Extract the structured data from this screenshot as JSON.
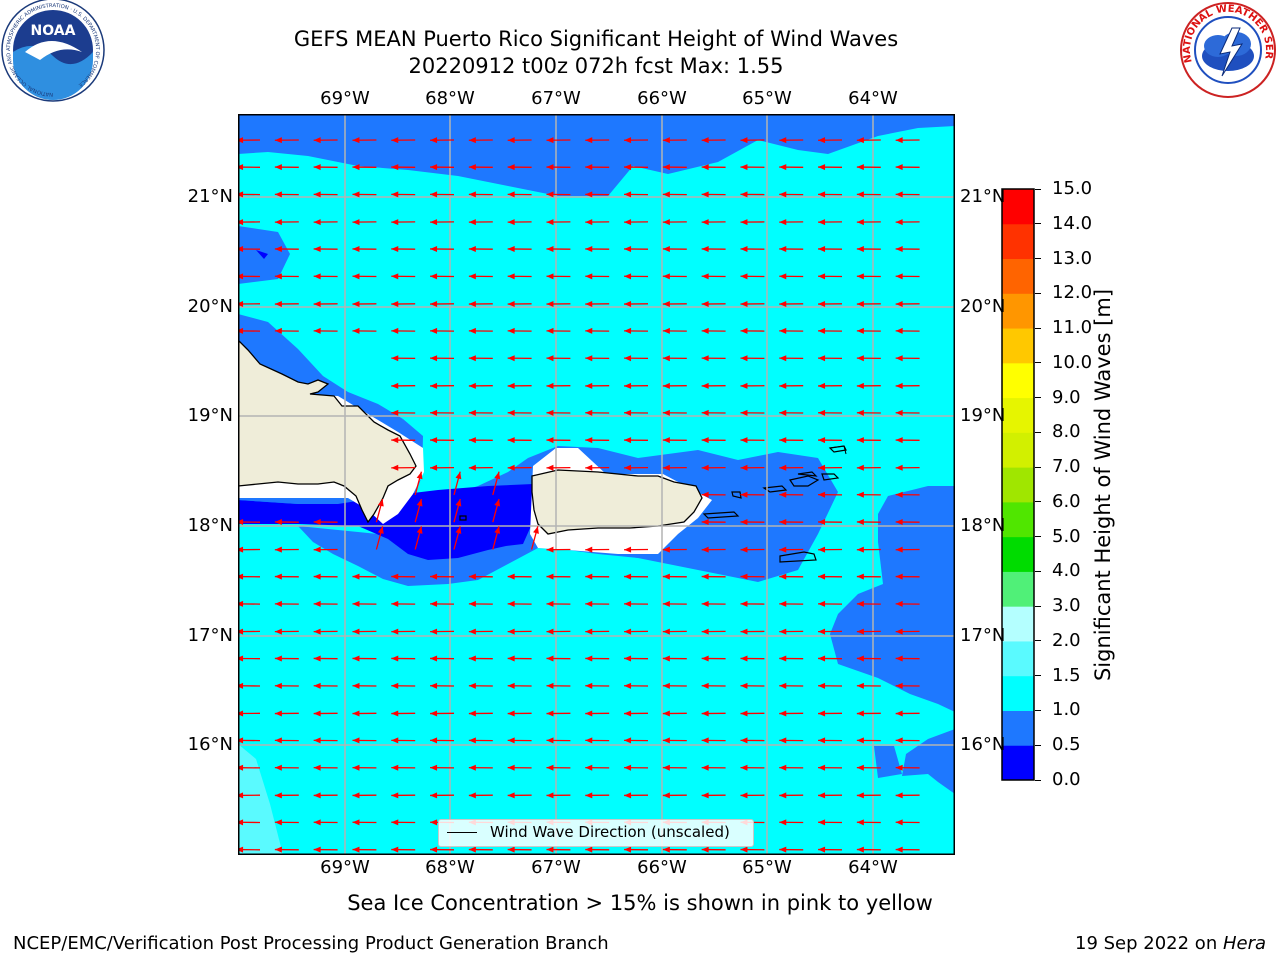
{
  "header": {
    "title_line1": "GEFS MEAN Puerto Rico Significant Height of Wind Waves",
    "title_line2": "20220912 t00z 072h fcst   Max: 1.55"
  },
  "map": {
    "lon_labels": [
      "69°W",
      "68°W",
      "67°W",
      "66°W",
      "65°W",
      "64°W"
    ],
    "lat_labels": [
      "21°N",
      "20°N",
      "19°N",
      "18°N",
      "17°N",
      "16°N"
    ],
    "legend_label": "Wind Wave Direction (unscaled)",
    "arrow_color": "#ff0000"
  },
  "colorbar": {
    "label": "Significant Height of Wind Waves [m]",
    "ticks": [
      "0.0",
      "0.5",
      "1.0",
      "1.5",
      "2.0",
      "3.0",
      "4.0",
      "5.0",
      "6.0",
      "7.0",
      "8.0",
      "9.0",
      "10.0",
      "11.0",
      "12.0",
      "13.0",
      "14.0",
      "15.0"
    ],
    "colors": [
      "#0000ff",
      "#1e78ff",
      "#00ffff",
      "#5afaff",
      "#b4ffff",
      "#50f078",
      "#00dc00",
      "#50e600",
      "#a0e600",
      "#d2f000",
      "#e6f500",
      "#ffff00",
      "#ffc800",
      "#ff9600",
      "#ff6400",
      "#ff3200",
      "#ff0000"
    ]
  },
  "footer": {
    "subtitle": "Sea Ice Concentration > 15% is shown in pink to yellow",
    "credit": "NCEP/EMC/Verification Post Processing Product Generation Branch",
    "date_prefix": "19 Sep 2022 on ",
    "date_host": "Hera"
  },
  "logos": {
    "noaa_text": "NOAA",
    "noaa_ring": "NATIONAL OCEANIC AND ATMOSPHERIC ADMINISTRATION · U.S. DEPARTMENT OF COMMERCE",
    "nws_ring": "NATIONAL WEATHER SERVICE"
  }
}
